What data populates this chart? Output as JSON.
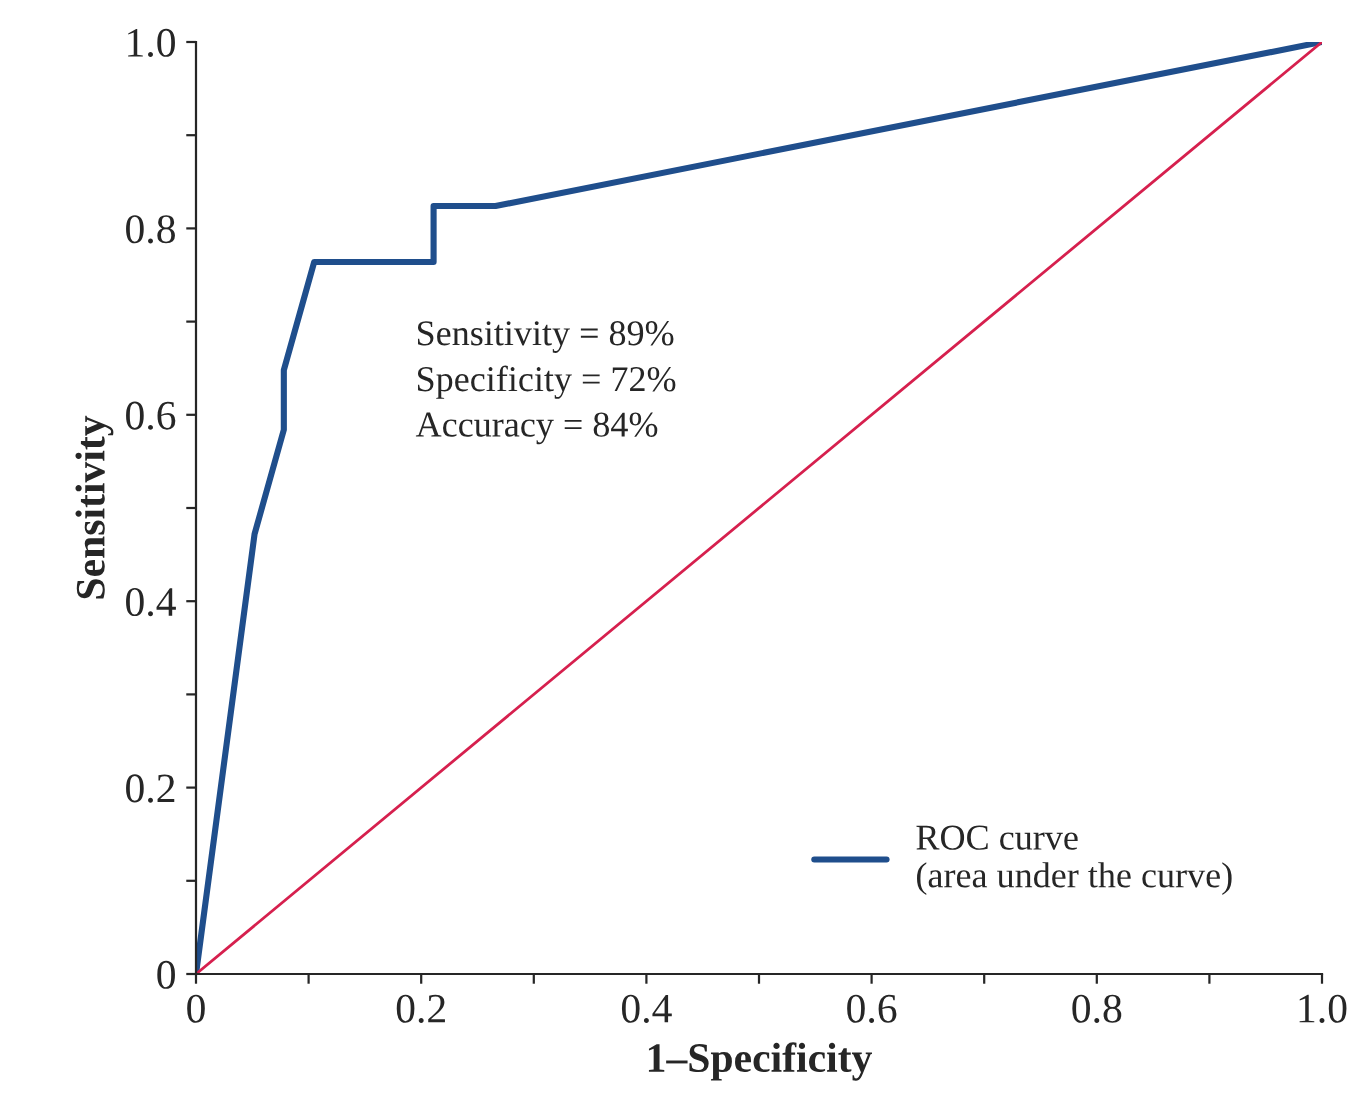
{
  "chart_data": {
    "type": "line",
    "xlabel": "1–Specificity",
    "ylabel": "Sensitivity",
    "series": [
      {
        "name": "ROC curve\n(area under the curve)",
        "color": "#1f4e8c",
        "x": [
          0,
          0.052,
          0.078,
          0.078,
          0.105,
          0.211,
          0.211,
          0.266,
          1.0
        ],
        "values": [
          0,
          0.472,
          0.584,
          0.648,
          0.764,
          0.764,
          0.824,
          0.824,
          1.0
        ]
      },
      {
        "type": "line",
        "color": "#d6204e",
        "x": [
          0,
          1.0
        ],
        "values": [
          0,
          1.0
        ]
      }
    ],
    "annotations": [
      "Sensitivity = 89%\nSpecificity = 72%\nAccuracy = 84%"
    ],
    "xlim": [
      0,
      1.0
    ],
    "ylim": [
      0,
      1.0
    ],
    "xticks": [
      0,
      {
        "value": 0.1,
        "label": null
      },
      0.2,
      {
        "value": 0.3,
        "label": null
      },
      0.4,
      {
        "value": 0.5,
        "label": null
      },
      0.6,
      {
        "value": 0.7,
        "label": null
      },
      0.8,
      {
        "value": 0.9,
        "label": null
      },
      {
        "value": 1.0,
        "label": "1.0"
      }
    ],
    "yticks": [
      0,
      {
        "value": 0.1,
        "label": null
      },
      0.2,
      {
        "value": 0.3,
        "label": null
      },
      0.4,
      {
        "value": 0.5,
        "label": null
      },
      0.6,
      {
        "value": 0.7,
        "label": null
      },
      0.8,
      {
        "value": 0.9,
        "label": null
      },
      {
        "value": 1.0,
        "label": "1.0"
      }
    ],
    "grid": false,
    "legend": "bottom right"
  }
}
